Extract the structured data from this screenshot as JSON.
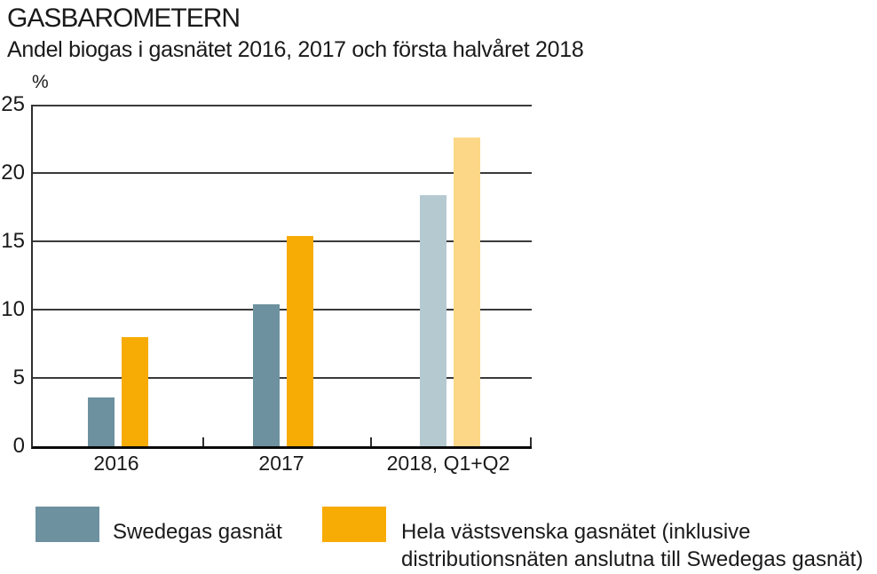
{
  "chart_data": {
    "type": "bar",
    "title": "GASBAROMETERN",
    "subtitle": "Andel biogas i gasnätet 2016, 2017 och första halvåret 2018",
    "unit_label": "%",
    "categories": [
      "2016",
      "2017",
      "2018, Q1+Q2"
    ],
    "series": [
      {
        "key": "swedegas",
        "name": "Swedegas gasnät",
        "values": [
          3.6,
          10.4,
          18.4
        ],
        "colors": [
          "#6D919F",
          "#6D919F",
          "#B5C9D1"
        ]
      },
      {
        "key": "vastsvenska",
        "name": "Hela västsvenska gasnätet (inklusive distributionsnäten anslutna till Swedegas gasnät)",
        "values": [
          8.0,
          15.4,
          22.6
        ],
        "colors": [
          "#F7AB05",
          "#F7AB05",
          "#FCD787"
        ]
      }
    ],
    "ylim": [
      0,
      25
    ],
    "yticks": [
      25,
      20,
      15,
      10,
      5,
      0
    ],
    "grid": true,
    "legend_position": "bottom"
  },
  "legend": {
    "items": [
      {
        "color": "#6D919F",
        "label_lines": [
          "Swedegas gasnät"
        ]
      },
      {
        "color": "#F7AB05",
        "label_lines": [
          "Hela västsvenska gasnätet (inklusive",
          "distributionsnäten anslutna till Swedegas gasnät)"
        ]
      }
    ]
  }
}
